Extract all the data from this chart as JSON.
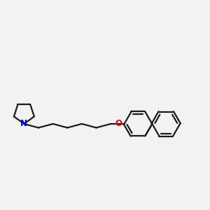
{
  "background_color": "#f2f2f2",
  "bond_color": "#1a1a1a",
  "N_color": "#0000ee",
  "O_color": "#ee0000",
  "line_width": 1.6,
  "figsize": [
    3.0,
    3.0
  ],
  "dpi": 100,
  "xlim": [
    0.0,
    1.02
  ],
  "ylim": [
    0.3,
    0.75
  ]
}
